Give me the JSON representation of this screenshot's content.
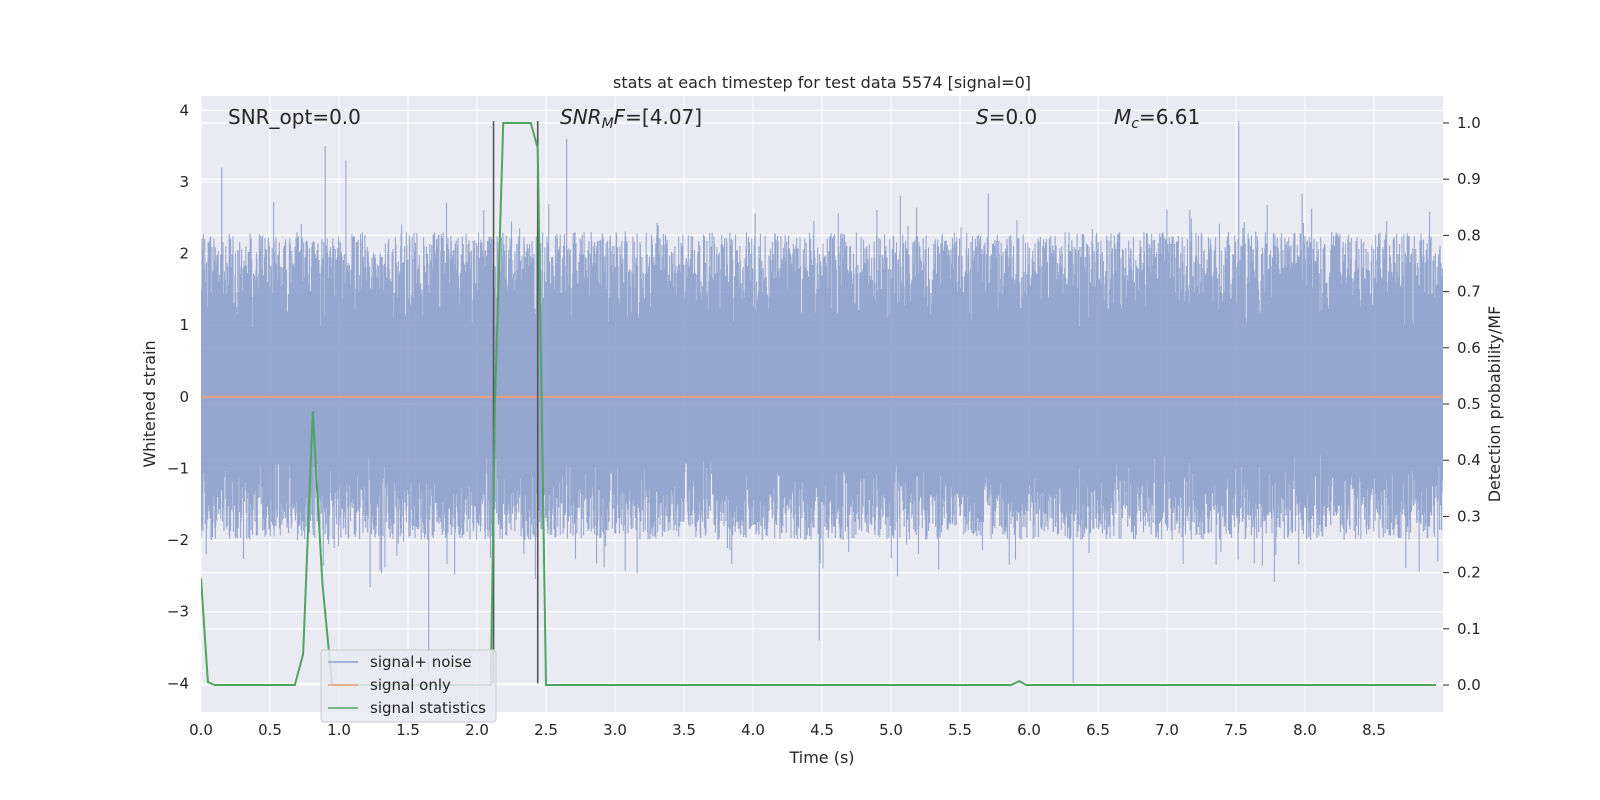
{
  "chart_data": {
    "type": "line",
    "title": "stats at each timestep for test data 5574 [signal=0]",
    "xlabel": "Time (s)",
    "ylabel": "Whitened strain",
    "y2label": "Detection probability/MF",
    "xlim": [
      0,
      9.0
    ],
    "ylim": [
      -4.4,
      4.2
    ],
    "y2lim": [
      -0.048,
      1.048
    ],
    "xticks": [
      "0.0",
      "0.5",
      "1.0",
      "1.5",
      "2.0",
      "2.5",
      "3.0",
      "3.5",
      "4.0",
      "4.5",
      "5.0",
      "5.5",
      "6.0",
      "6.5",
      "7.0",
      "7.5",
      "8.0",
      "8.5"
    ],
    "yticks": [
      "4",
      "3",
      "2",
      "1",
      "0",
      "−1",
      "−2",
      "−3",
      "−4"
    ],
    "y2ticks": [
      "1.0",
      "0.9",
      "0.8",
      "0.7",
      "0.6",
      "0.5",
      "0.4",
      "0.3",
      "0.2",
      "0.1",
      "0.0"
    ],
    "grid": true,
    "legend_position": "lower-left",
    "annotations": {
      "snr_opt": "SNR_opt=0.0",
      "snr_mf_main": "SNR",
      "snr_mf_sub": "M",
      "snr_mf_italic": "F",
      "snr_mf_value": "=[4.07]",
      "s_italic": "S",
      "s_value": "=0.0",
      "mc_main": "M",
      "mc_sub": "c",
      "mc_value": "=6.61"
    },
    "vertical_markers": [
      2.12,
      2.44
    ],
    "series": [
      {
        "name": "signal+ noise",
        "axis": "left",
        "color": "#8da0cb",
        "description_kind": "dense noise",
        "envelope_upper_typical": 2.3,
        "envelope_lower_typical": -2.0,
        "peak_points": [
          {
            "x": 0.15,
            "y": 3.2
          },
          {
            "x": 0.9,
            "y": 3.5
          },
          {
            "x": 1.05,
            "y": 3.3
          },
          {
            "x": 2.65,
            "y": 3.6
          },
          {
            "x": 7.52,
            "y": 3.85
          },
          {
            "x": 1.65,
            "y": -3.85
          },
          {
            "x": 6.32,
            "y": -4.0
          },
          {
            "x": 4.48,
            "y": -3.4
          }
        ]
      },
      {
        "name": "signal only",
        "axis": "left",
        "color": "#e5a07a",
        "x": [
          0,
          9.0
        ],
        "y": [
          0,
          0
        ]
      },
      {
        "name": "signal statistics",
        "axis": "right",
        "color": "#4ca660",
        "x": [
          0.0,
          0.05,
          0.1,
          0.68,
          0.74,
          0.81,
          0.88,
          0.95,
          2.1,
          2.13,
          2.19,
          2.39,
          2.44,
          2.5,
          5.87,
          5.93,
          5.98,
          8.95
        ],
        "y": [
          0.19,
          0.005,
          0.0,
          0.0,
          0.055,
          0.487,
          0.18,
          0.0,
          0.0,
          0.5,
          1.0,
          1.0,
          0.955,
          0.0,
          0.0,
          0.007,
          0.0,
          0.0
        ]
      }
    ]
  }
}
